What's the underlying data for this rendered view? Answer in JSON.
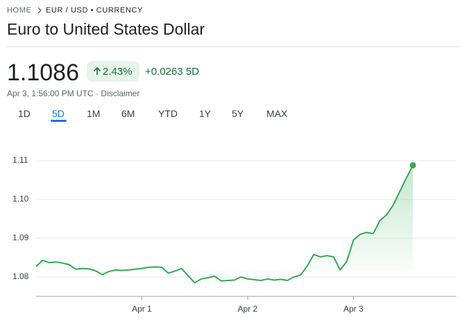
{
  "breadcrumb": {
    "home": "HOME",
    "current": "EUR / USD • CURRENCY"
  },
  "title": "Euro to United States Dollar",
  "quote": {
    "price": "1.1086",
    "percent_change": "2.43%",
    "change": "+0.0263",
    "period": "5D",
    "timestamp": "Apr 3, 1:56:00 PM UTC",
    "separator": "·",
    "disclaimer": "Disclaimer"
  },
  "tabs": [
    "1D",
    "5D",
    "1M",
    "6M",
    "YTD",
    "1Y",
    "5Y",
    "MAX"
  ],
  "active_tab": 1,
  "chart_data": {
    "type": "line",
    "color": "#34a853",
    "grid": true,
    "x": [
      0,
      1.5,
      3,
      4.5,
      6,
      7.5,
      9,
      10.5,
      12,
      13.5,
      15,
      16.5,
      18,
      19.5,
      21,
      22.5,
      24,
      25.5,
      27,
      28.5,
      30,
      31.5,
      33,
      34.5,
      36,
      37.5,
      39,
      40.5,
      42,
      43.5,
      45,
      46.5,
      48,
      49.5,
      51,
      52.5,
      54,
      55.5,
      57,
      58.5,
      60,
      61.5,
      63,
      64.5,
      66,
      67.5,
      69,
      70.5,
      72,
      73.5,
      75,
      76.5,
      78,
      79.5,
      81,
      82.5,
      84,
      85.5
    ],
    "values": [
      1.0827,
      1.0843,
      1.0837,
      1.0839,
      1.0836,
      1.0832,
      1.082,
      1.0822,
      1.0821,
      1.0816,
      1.0806,
      1.0814,
      1.0818,
      1.0817,
      1.0818,
      1.082,
      1.0822,
      1.0825,
      1.0826,
      1.0825,
      1.081,
      1.0815,
      1.0822,
      1.0803,
      1.0785,
      1.0795,
      1.0798,
      1.0802,
      1.079,
      1.0791,
      1.0792,
      1.08,
      1.0795,
      1.0793,
      1.0791,
      1.0795,
      1.0792,
      1.0794,
      1.0791,
      1.08,
      1.0805,
      1.0828,
      1.0858,
      1.0852,
      1.0855,
      1.0852,
      1.0818,
      1.084,
      1.0895,
      1.091,
      1.0915,
      1.0912,
      1.0945,
      1.096,
      1.0985,
      1.102,
      1.1055,
      1.1088
    ],
    "xlim": [
      0,
      95.4
    ],
    "xticks": [
      {
        "value": 24,
        "label": "Apr 1"
      },
      {
        "value": 48,
        "label": "Apr 2"
      },
      {
        "value": 72,
        "label": "Apr 3"
      }
    ],
    "ylim": [
      1.075,
      1.113
    ],
    "yticks": [
      {
        "value": 1.08,
        "label": "1.08"
      },
      {
        "value": 1.09,
        "label": "1.09"
      },
      {
        "value": 1.1,
        "label": "1.10"
      },
      {
        "value": 1.11,
        "label": "1.11"
      }
    ]
  }
}
